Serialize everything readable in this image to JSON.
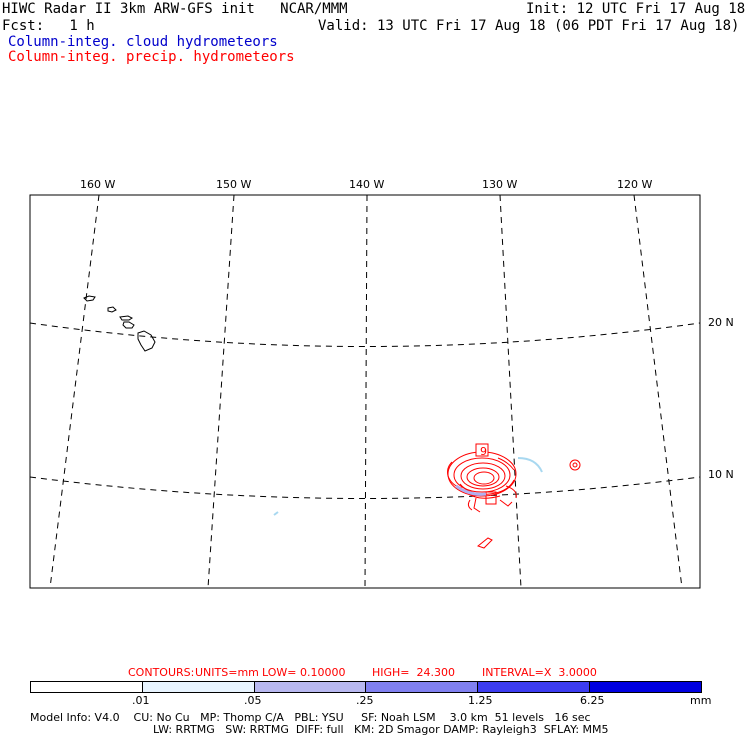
{
  "header": {
    "title": "HIWC Radar II 3km ARW-GFS init   NCAR/MMM",
    "init": "Init: 12 UTC Fri 17 Aug 18",
    "fcst": "Fcst:   1 h",
    "valid": "Valid: 13 UTC Fri 17 Aug 18 (06 PDT Fri 17 Aug 18)",
    "field_cloud": "Column-integ. cloud hydrometeors",
    "field_precip": "Column-integ. precip. hydrometeors"
  },
  "map": {
    "lon_labels": [
      "160 W",
      "150 W",
      "140 W",
      "130 W",
      "120 W"
    ],
    "lat_labels": [
      "20 N",
      "10 N"
    ],
    "max_marker": "9"
  },
  "contours": {
    "label": "CONTOURS:",
    "units": "UNITS=mm",
    "low": "LOW= 0.10000",
    "high": "HIGH=  24.300",
    "interval": "INTERVAL=X  3.0000"
  },
  "colorbar": {
    "ticks": [
      ".01",
      ".05",
      ".25",
      "1.25",
      "6.25"
    ],
    "unit": "mm",
    "colors": [
      "#ffffff",
      "#e8f4ff",
      "#b8b8f0",
      "#8080f0",
      "#3c3cf0",
      "#0000e0"
    ]
  },
  "model_info": {
    "line1": "Model Info: V4.0    CU: No Cu   MP: Thomp C/A   PBL: YSU     SF: Noah LSM    3.0 km  51 levels   16 sec",
    "line2": "LW: RRTMG   SW: RRTMG  DIFF: full   KM: 2D Smagor DAMP: Rayleigh3  SFLAY: MM5"
  },
  "colors": {
    "cloud": "#0000cc",
    "precip": "#ff0000",
    "frame": "#000000"
  }
}
